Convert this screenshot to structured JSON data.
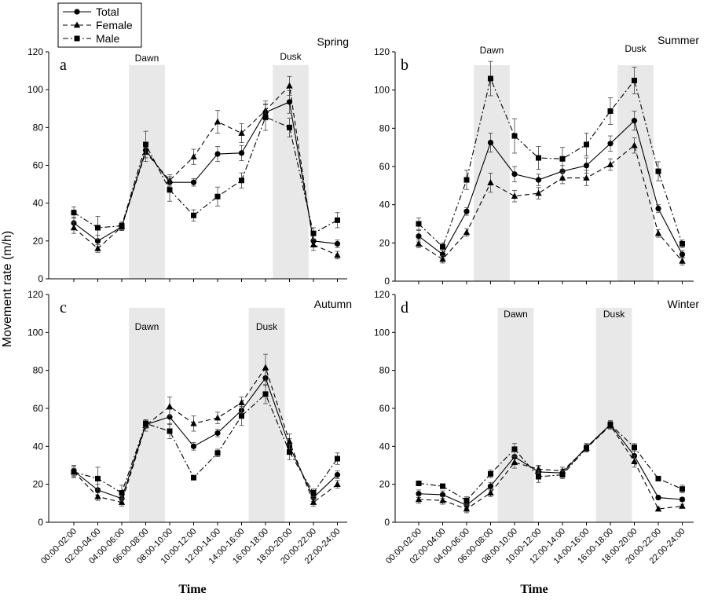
{
  "figure": {
    "ylabel": "Movement rate (m/h)",
    "xlabel": "Time"
  },
  "legend": {
    "entries": [
      {
        "name": "Total",
        "style": "solid",
        "marker": "circle"
      },
      {
        "name": "Female",
        "style": "dash",
        "marker": "triangle"
      },
      {
        "name": "Male",
        "style": "dashdot",
        "marker": "square"
      }
    ]
  },
  "colors": {
    "line": "#000000",
    "band": "#e8e8e8",
    "axis": "#000000"
  },
  "chart_data": [
    {
      "type": "line",
      "panel": "a",
      "season": "Spring",
      "categories": [
        "00:00-02:00",
        "02:00-04:00",
        "04:00-06:00",
        "06:00-08:00",
        "08:00-10:00",
        "10:00-12:00",
        "12:00-14:00",
        "14:00-16:00",
        "16:00-18:00",
        "18:00-20:00",
        "20:00-22:00",
        "22:00-24:00"
      ],
      "ylim": [
        0,
        120
      ],
      "yticks": [
        0,
        20,
        40,
        60,
        80,
        100,
        120
      ],
      "bands": [
        {
          "label": "Dawn",
          "from": 2.3,
          "to": 3.8
        },
        {
          "label": "Dusk",
          "from": 8.3,
          "to": 9.8
        }
      ],
      "series": [
        {
          "name": "Total",
          "values": [
            29.5,
            20,
            27.5,
            68,
            51,
            51,
            66,
            66.5,
            88,
            93.5,
            20,
            18.5
          ],
          "errors": [
            3,
            3,
            2,
            4,
            3,
            2,
            4,
            4,
            4,
            6,
            3,
            2
          ]
        },
        {
          "name": "Female",
          "values": [
            27,
            16,
            27.5,
            67,
            52,
            64.5,
            83,
            77,
            89,
            102,
            18,
            12.5
          ],
          "errors": [
            3,
            2,
            2,
            5,
            3,
            4,
            6,
            5,
            5,
            5,
            3,
            2
          ]
        },
        {
          "name": "Male",
          "values": [
            35,
            27,
            28,
            71,
            47,
            33.5,
            43.5,
            52,
            85.5,
            80,
            24,
            31
          ],
          "errors": [
            3,
            6,
            2,
            7,
            6,
            3,
            5,
            4,
            7,
            5,
            3,
            4
          ]
        }
      ]
    },
    {
      "type": "line",
      "panel": "b",
      "season": "Summer",
      "categories": [
        "00:00-02:00",
        "02:00-04:00",
        "04:00-06:00",
        "06:00-08:00",
        "08:00-10:00",
        "10:00-12:00",
        "12:00-14:00",
        "14:00-16:00",
        "16:00-18:00",
        "18:00-20:00",
        "20:00-22:00",
        "22:00-24:00"
      ],
      "ylim": [
        0,
        120
      ],
      "yticks": [
        0,
        20,
        40,
        60,
        80,
        100,
        120
      ],
      "bands": [
        {
          "label": "Dawn",
          "from": 2.3,
          "to": 3.8
        },
        {
          "label": "Dusk",
          "from": 8.3,
          "to": 9.8
        }
      ],
      "series": [
        {
          "name": "Total",
          "values": [
            23.5,
            14,
            36.5,
            72.5,
            56,
            53,
            57.5,
            60.5,
            72,
            84,
            38,
            14
          ],
          "errors": [
            3,
            2,
            2,
            5,
            4,
            3,
            3,
            4,
            4,
            5,
            2,
            2
          ]
        },
        {
          "name": "Female",
          "values": [
            19.5,
            11.5,
            25.5,
            51.5,
            44.5,
            46,
            54,
            54,
            61,
            71,
            25,
            10.5
          ],
          "errors": [
            2,
            2,
            2,
            5,
            3,
            3,
            3,
            4,
            3,
            4,
            2,
            2
          ]
        },
        {
          "name": "Male",
          "values": [
            30,
            18,
            53,
            106,
            76,
            64.5,
            64,
            71.5,
            89,
            105,
            57.5,
            19.5
          ],
          "errors": [
            3,
            2,
            5,
            9,
            9,
            6,
            6,
            6,
            7,
            7,
            5,
            2
          ]
        }
      ]
    },
    {
      "type": "line",
      "panel": "c",
      "season": "Autumn",
      "categories": [
        "00:00-02:00",
        "02:00-04:00",
        "04:00-06:00",
        "06:00-08:00",
        "08:00-10:00",
        "10:00-12:00",
        "12:00-14:00",
        "14:00-16:00",
        "16:00-18:00",
        "18:00-20:00",
        "20:00-22:00",
        "22:00-24:00"
      ],
      "ylim": [
        0,
        120
      ],
      "yticks": [
        0,
        20,
        40,
        60,
        80,
        100,
        120
      ],
      "bands": [
        {
          "label": "Dawn",
          "from": 2.3,
          "to": 3.8
        },
        {
          "label": "Dusk",
          "from": 7.3,
          "to": 8.8
        }
      ],
      "series": [
        {
          "name": "Total",
          "values": [
            27,
            17,
            12.5,
            51.5,
            55.5,
            40,
            47,
            59,
            76,
            40,
            13,
            25
          ],
          "errors": [
            3,
            3,
            2,
            2,
            4,
            2,
            2,
            3,
            4,
            4,
            2,
            2
          ]
        },
        {
          "name": "Female",
          "values": [
            26.5,
            13.5,
            10.5,
            51,
            61,
            52,
            55,
            63,
            81.5,
            42.5,
            10.5,
            20
          ],
          "errors": [
            2,
            2,
            2,
            3,
            5,
            4,
            3,
            3,
            7,
            4,
            2,
            2
          ]
        },
        {
          "name": "Male",
          "values": [
            26.5,
            23,
            15.5,
            52,
            48,
            23.5,
            36.5,
            56,
            67.5,
            37,
            15.5,
            33.5
          ],
          "errors": [
            3,
            6,
            4,
            2,
            4,
            1,
            2,
            5,
            5,
            4,
            2,
            3
          ]
        }
      ]
    },
    {
      "type": "line",
      "panel": "d",
      "season": "Winter",
      "categories": [
        "00:00-02:00",
        "02:00-04:00",
        "04:00-06:00",
        "06:00-08:00",
        "08:00-10:00",
        "10:00-12:00",
        "12:00-14:00",
        "14:00-16:00",
        "16:00-18:00",
        "18:00-20:00",
        "20:00-22:00",
        "22:00-24:00"
      ],
      "ylim": [
        0,
        120
      ],
      "yticks": [
        0,
        20,
        40,
        60,
        80,
        100,
        120
      ],
      "bands": [
        {
          "label": "Dawn",
          "from": 3.3,
          "to": 4.8
        },
        {
          "label": "Dusk",
          "from": 7.4,
          "to": 8.9
        }
      ],
      "series": [
        {
          "name": "Total",
          "values": [
            15,
            14.5,
            9,
            19,
            34.5,
            26.5,
            26,
            39.5,
            51.5,
            35,
            13,
            12
          ],
          "errors": [
            2,
            2,
            2,
            2,
            3,
            3,
            2,
            2,
            2,
            3,
            1,
            1
          ]
        },
        {
          "name": "Female",
          "values": [
            12,
            11.5,
            7,
            15.5,
            31.5,
            28,
            27,
            39,
            51,
            32,
            7,
            8.5
          ],
          "errors": [
            2,
            2,
            2,
            2,
            3,
            2,
            2,
            2,
            2,
            3,
            1,
            1
          ]
        },
        {
          "name": "Male",
          "values": [
            20.5,
            19,
            11.5,
            25.5,
            38.5,
            24,
            25,
            39,
            51.5,
            39.5,
            23,
            17.5
          ],
          "errors": [
            1,
            1,
            2,
            2,
            3,
            3,
            2,
            2,
            2,
            2,
            1,
            2
          ]
        }
      ]
    }
  ]
}
